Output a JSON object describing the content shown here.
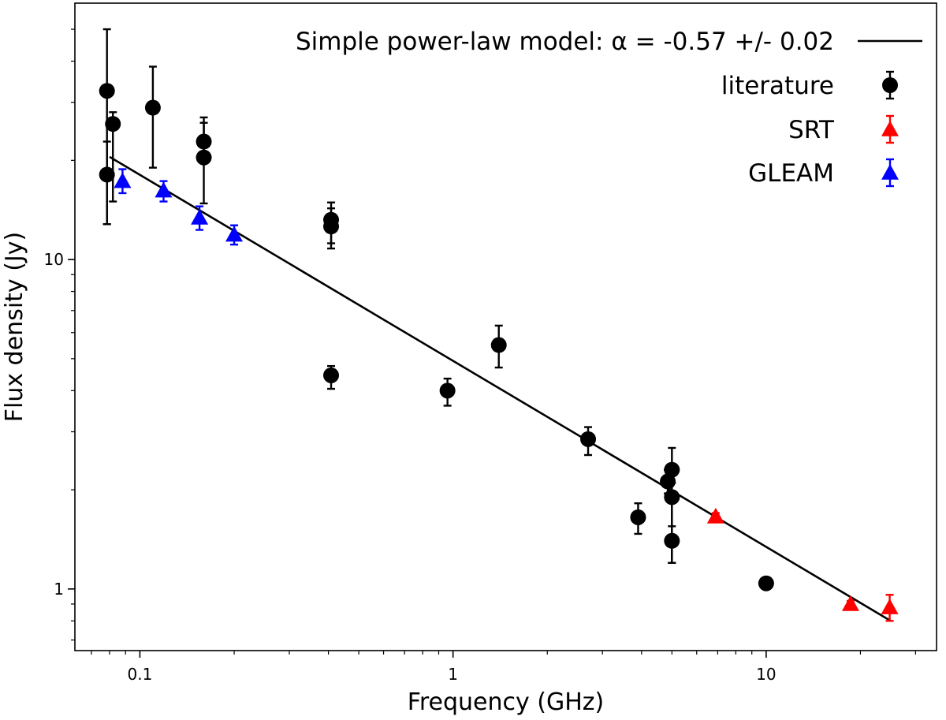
{
  "chart_data": {
    "type": "scatter",
    "xscale": "log",
    "yscale": "log",
    "xlabel": "Frequency (GHz)",
    "ylabel": "Flux density (Jy)",
    "xlim": [
      0.062,
      35
    ],
    "ylim": [
      0.65,
      60
    ],
    "xticks": [
      {
        "value": 0.1,
        "label": "0.1"
      },
      {
        "value": 1,
        "label": "1"
      },
      {
        "value": 10,
        "label": "10"
      }
    ],
    "yticks": [
      {
        "value": 1,
        "label": "1"
      },
      {
        "value": 10,
        "label": "10"
      }
    ],
    "legend_position": "top-right",
    "model": {
      "name": "Simple power-law model: α = -0.57 +/- 0.02",
      "alpha": -0.57,
      "x_range": [
        0.08,
        25
      ],
      "y_at_x_range": [
        20.5,
        0.8
      ]
    },
    "series": [
      {
        "name": "literature",
        "marker": "circle",
        "color": "#000000",
        "points": [
          {
            "x": 0.0785,
            "y": 32.5,
            "err_up": 50,
            "err_down": 12.8
          },
          {
            "x": 0.0785,
            "y": 18.1,
            "err_up": 22.8,
            "err_down": 12.8
          },
          {
            "x": 0.082,
            "y": 25.8,
            "err_up": 28.0,
            "err_down": 15.0
          },
          {
            "x": 0.11,
            "y": 28.9,
            "err_up": 38.5,
            "err_down": 19.0
          },
          {
            "x": 0.16,
            "y": 22.8,
            "err_up": 27.0,
            "err_down": 20.0
          },
          {
            "x": 0.16,
            "y": 20.4,
            "err_up": 26.0,
            "err_down": 14.8
          },
          {
            "x": 0.408,
            "y": 13.2,
            "err_up": 14.9,
            "err_down": 11.2
          },
          {
            "x": 0.408,
            "y": 12.6,
            "err_up": 14.3,
            "err_down": 10.8
          },
          {
            "x": 0.408,
            "y": 4.45,
            "err_up": 4.75,
            "err_down": 4.05
          },
          {
            "x": 0.96,
            "y": 4.0,
            "err_up": 4.35,
            "err_down": 3.6
          },
          {
            "x": 1.4,
            "y": 5.5,
            "err_up": 6.3,
            "err_down": 4.7
          },
          {
            "x": 2.7,
            "y": 2.85,
            "err_up": 3.1,
            "err_down": 2.55
          },
          {
            "x": 3.9,
            "y": 1.65,
            "err_up": 1.82,
            "err_down": 1.47
          },
          {
            "x": 4.85,
            "y": 2.12,
            "err_up": 2.3,
            "err_down": 1.95
          },
          {
            "x": 5.0,
            "y": 2.3,
            "err_up": 2.68,
            "err_down": 1.2
          },
          {
            "x": 5.0,
            "y": 1.9,
            "err_up": 2.1,
            "err_down": 1.2
          },
          {
            "x": 5.0,
            "y": 1.4,
            "err_up": 1.55,
            "err_down": 1.2
          },
          {
            "x": 10.0,
            "y": 1.04,
            "err_up": 1.06,
            "err_down": 1.02
          }
        ]
      },
      {
        "name": "SRT",
        "marker": "triangle",
        "color": "#ff0000",
        "points": [
          {
            "x": 6.9,
            "y": 1.66,
            "err_up": 1.7,
            "err_down": 1.62
          },
          {
            "x": 18.6,
            "y": 0.9,
            "err_up": 0.92,
            "err_down": 0.88
          },
          {
            "x": 24.8,
            "y": 0.88,
            "err_up": 0.96,
            "err_down": 0.8
          }
        ]
      },
      {
        "name": "GLEAM",
        "marker": "triangle",
        "color": "#0000ff",
        "points": [
          {
            "x": 0.088,
            "y": 17.3,
            "err_up": 18.8,
            "err_down": 15.9
          },
          {
            "x": 0.119,
            "y": 16.2,
            "err_up": 17.3,
            "err_down": 15.0
          },
          {
            "x": 0.155,
            "y": 13.4,
            "err_up": 14.5,
            "err_down": 12.3
          },
          {
            "x": 0.2,
            "y": 11.9,
            "err_up": 12.7,
            "err_down": 11.1
          }
        ]
      }
    ]
  }
}
